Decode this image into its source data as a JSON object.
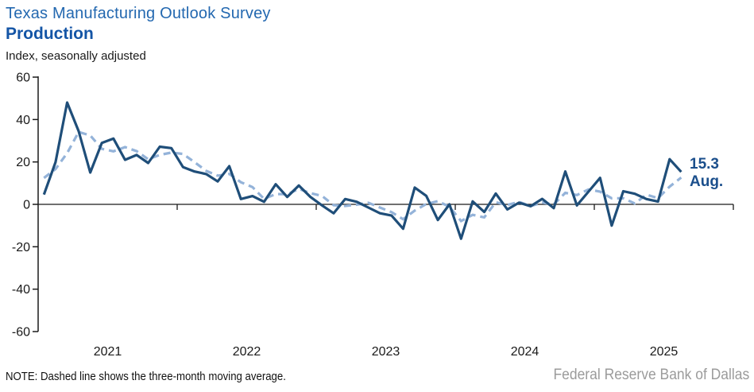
{
  "header": {
    "title": "Texas Manufacturing Outlook Survey",
    "subtitle": "Production",
    "units_label": "Index, seasonally adjusted"
  },
  "colors": {
    "title_blue": "#2368B0",
    "subtitle_blue": "#1455A6",
    "solid_line": "#1F4E79",
    "dashed_line": "#94B3D9",
    "annotation_blue": "#1B4F8C",
    "axis": "#1a1a1a",
    "source_gray": "#9B9B9B"
  },
  "chart_data": {
    "type": "line",
    "title": "Texas Manufacturing Outlook Survey — Production",
    "ylabel": "Index, seasonally adjusted",
    "ylim": [
      -60,
      60
    ],
    "y_ticks": [
      60,
      40,
      20,
      0,
      -20,
      -40,
      -60
    ],
    "x_year_labels": [
      "2021",
      "2022",
      "2023",
      "2024",
      "2025"
    ],
    "x_months": {
      "start": "2021-01",
      "end": "2025-08",
      "frequency": "monthly"
    },
    "grid": "none",
    "legend": "none",
    "series": [
      {
        "name": "production_index_monthly",
        "style": "solid",
        "color": "#1F4E79",
        "values": [
          4.6,
          19.9,
          48.0,
          34.5,
          15.0,
          29.0,
          31.0,
          21.0,
          23.3,
          19.5,
          27.2,
          26.5,
          17.6,
          15.5,
          14.3,
          10.8,
          18.0,
          2.5,
          3.9,
          1.2,
          9.5,
          3.5,
          8.9,
          3.5,
          -0.5,
          -4.2,
          2.5,
          1.2,
          -1.5,
          -4.2,
          -5.3,
          -11.5,
          7.9,
          4.0,
          -7.4,
          0.0,
          -16.2,
          1.4,
          -3.6,
          5.1,
          -2.4,
          0.8,
          -0.9,
          2.6,
          -1.8,
          15.5,
          -0.5,
          6.0,
          12.5,
          -10.0,
          6.2,
          5.0,
          2.5,
          1.3,
          21.3,
          15.3
        ]
      },
      {
        "name": "three_month_moving_average",
        "style": "dashed",
        "color": "#94B3D9",
        "derived": "three-month moving average of production_index_monthly",
        "seed_prior_values": [
          7.2,
          25.5
        ]
      }
    ],
    "annotation": {
      "value": 15.3,
      "value_label": "15.3",
      "month_label": "Aug."
    }
  },
  "footer": {
    "note": "NOTE: Dashed line shows the three-month  moving average.",
    "source": "Federal Reserve Bank of Dallas"
  }
}
